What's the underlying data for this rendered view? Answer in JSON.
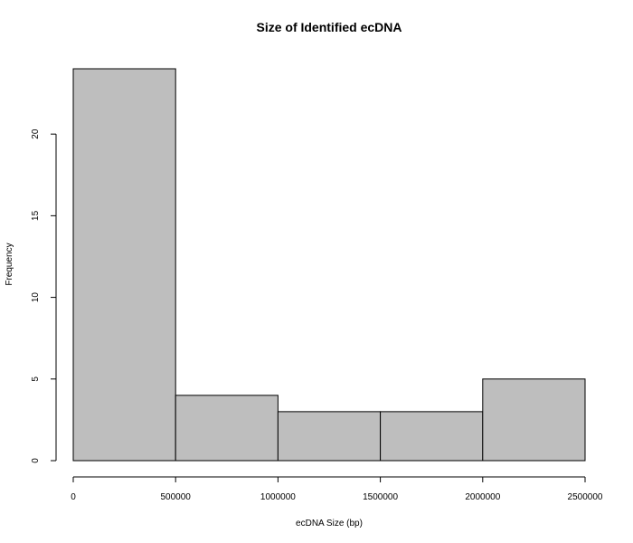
{
  "chart_data": {
    "type": "bar",
    "title": "Size of Identified ecDNA",
    "xlabel": "ecDNA Size (bp)",
    "ylabel": "Frequency",
    "bins": [
      {
        "start": 0,
        "end": 500000,
        "count": 24
      },
      {
        "start": 500000,
        "end": 1000000,
        "count": 4
      },
      {
        "start": 1000000,
        "end": 1500000,
        "count": 3
      },
      {
        "start": 1500000,
        "end": 2000000,
        "count": 3
      },
      {
        "start": 2000000,
        "end": 2500000,
        "count": 5
      }
    ],
    "xlim": [
      0,
      2500000
    ],
    "ylim": [
      0,
      24
    ],
    "xticks": [
      "0",
      "500000",
      "1000000",
      "1500000",
      "2000000",
      "2500000"
    ],
    "xtick_values": [
      0,
      500000,
      1000000,
      1500000,
      2000000,
      2500000
    ],
    "yticks": [
      "0",
      "5",
      "10",
      "15",
      "20"
    ],
    "ytick_values": [
      0,
      5,
      10,
      15,
      20
    ],
    "bar_color": "#bebebe",
    "grid": false
  }
}
